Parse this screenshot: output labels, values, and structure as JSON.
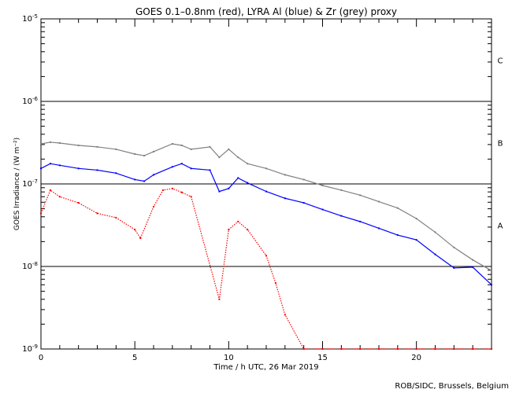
{
  "chart_data": {
    "type": "scatter",
    "title": "GOES 0.1–0.8nm (red), LYRA Al (blue) & Zr (grey) proxy",
    "xlabel": "Time / h UTC, 26 Mar 2019",
    "ylabel": "GOES Irradiance / (W m⁻²)",
    "credit": "ROB/SIDC, Brussels, Belgium",
    "xlim": [
      0,
      24
    ],
    "ylim": [
      1e-09,
      1e-05
    ],
    "yscale": "log",
    "xticks": [
      "0",
      "5",
      "10",
      "15",
      "20"
    ],
    "xtick_values": [
      0,
      5,
      10,
      15,
      20
    ],
    "yticks": [
      {
        "base": "10",
        "exp": "-9",
        "value": 1e-09
      },
      {
        "base": "10",
        "exp": "-8",
        "value": 1e-08
      },
      {
        "base": "10",
        "exp": "-7",
        "value": 1e-07
      },
      {
        "base": "10",
        "exp": "-6",
        "value": 1e-06
      },
      {
        "base": "10",
        "exp": "-5",
        "value": 1e-05
      }
    ],
    "flare_classes": [
      {
        "label": "A",
        "low": 1e-08,
        "high": 1e-07
      },
      {
        "label": "B",
        "low": 1e-07,
        "high": 1e-06
      },
      {
        "label": "C",
        "low": 1e-06,
        "high": 1e-05
      }
    ],
    "reference_lines": [
      1e-08,
      1e-07,
      1e-06
    ],
    "series": [
      {
        "name": "LYRA Zr proxy",
        "color": "#808080",
        "x": [
          0,
          0.5,
          1,
          2,
          3,
          4,
          5,
          5.5,
          6,
          7,
          7.5,
          8,
          9,
          9.5,
          10,
          10.5,
          11,
          12,
          13,
          14,
          15,
          16,
          17,
          18,
          19,
          20,
          21,
          22,
          23,
          24
        ],
        "y": [
          3.06e-07,
          3.2e-07,
          3.13e-07,
          2.93e-07,
          2.81e-07,
          2.63e-07,
          2.3e-07,
          2.2e-07,
          2.46e-07,
          3.06e-07,
          2.93e-07,
          2.63e-07,
          2.81e-07,
          2.1e-07,
          2.63e-07,
          2.1e-07,
          1.76e-07,
          1.54e-07,
          1.29e-07,
          1.13e-07,
          9.57e-08,
          8.4e-08,
          7.3e-08,
          6.1e-08,
          5.1e-08,
          3.8e-08,
          2.6e-08,
          1.7e-08,
          1.2e-08,
          8.9e-09
        ]
      },
      {
        "name": "LYRA Al proxy",
        "color": "#0000ff",
        "x": [
          0,
          0.5,
          1,
          2,
          3,
          4,
          5,
          5.5,
          6,
          7,
          7.5,
          8,
          9,
          9.5,
          10,
          10.5,
          11,
          12,
          13,
          14,
          15,
          16,
          17,
          18,
          19,
          20,
          21,
          22,
          23,
          24
        ],
        "y": [
          1.54e-07,
          1.76e-07,
          1.68e-07,
          1.54e-07,
          1.47e-07,
          1.35e-07,
          1.13e-07,
          1.08e-07,
          1.29e-07,
          1.61e-07,
          1.76e-07,
          1.54e-07,
          1.47e-07,
          8.1e-08,
          8.8e-08,
          1.18e-07,
          1.03e-07,
          8.1e-08,
          6.7e-08,
          5.9e-08,
          4.9e-08,
          4.1e-08,
          3.5e-08,
          2.9e-08,
          2.4e-08,
          2.1e-08,
          1.4e-08,
          9.6e-09,
          9.8e-09,
          6e-09
        ]
      },
      {
        "name": "GOES 0.1-0.8nm",
        "color": "#ff0000",
        "x": [
          0,
          0.5,
          1,
          2,
          3,
          4,
          5,
          5.3,
          6,
          6.5,
          7,
          7.5,
          8,
          9.5,
          10,
          10.5,
          11,
          12,
          12.5,
          13,
          14,
          15,
          16,
          17,
          18,
          19,
          20,
          21,
          22,
          23,
          24
        ],
        "y": [
          4.4e-08,
          8.4e-08,
          7e-08,
          5.9e-08,
          4.4e-08,
          3.9e-08,
          2.8e-08,
          2.2e-08,
          5.3e-08,
          8.4e-08,
          8.8e-08,
          7.9e-08,
          7e-08,
          4e-09,
          2.8e-08,
          3.5e-08,
          2.8e-08,
          1.35e-08,
          6.3e-09,
          2.6e-09,
          1e-09,
          1e-09,
          1e-09,
          1e-09,
          1e-09,
          1e-09,
          1e-09,
          1e-09,
          1e-09,
          1e-09,
          1e-09
        ]
      }
    ]
  }
}
